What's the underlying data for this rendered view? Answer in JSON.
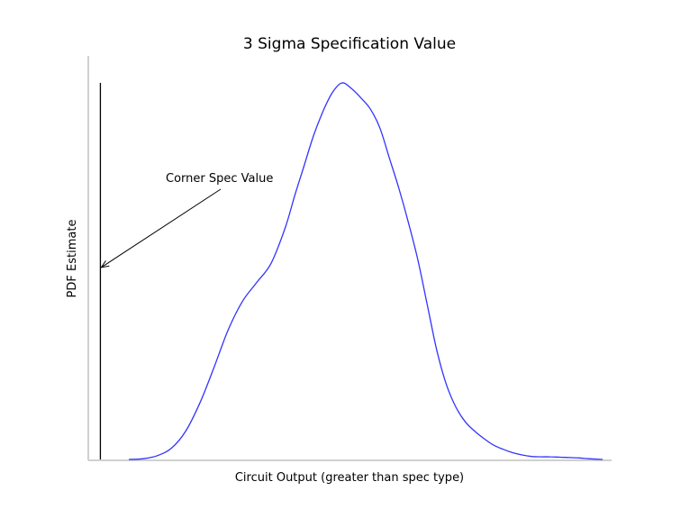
{
  "chart_data": {
    "type": "line",
    "title": "3 Sigma Specification Value",
    "xlabel": "Circuit Output (greater than spec type)",
    "ylabel": "PDF Estimate",
    "xlim": [
      0,
      1
    ],
    "ylim": [
      0,
      1
    ],
    "grid": false,
    "colors": {
      "curve": "#3333ff",
      "spec_line": "#000000",
      "axes": "#d0d0d0"
    },
    "series": [
      {
        "x": [
          0.0,
          0.03,
          0.06,
          0.09,
          0.12,
          0.15,
          0.18,
          0.21,
          0.24,
          0.27,
          0.3,
          0.33,
          0.35,
          0.37,
          0.39,
          0.41,
          0.43,
          0.45,
          0.47,
          0.49,
          0.51,
          0.53,
          0.55,
          0.57,
          0.59,
          0.61,
          0.63,
          0.65,
          0.67,
          0.69,
          0.71,
          0.73,
          0.75,
          0.77,
          0.79,
          0.81,
          0.83,
          0.85,
          0.87,
          0.89,
          0.91,
          0.93,
          0.95,
          0.97,
          1.0
        ],
        "y": [
          0.0,
          0.002,
          0.01,
          0.03,
          0.075,
          0.15,
          0.245,
          0.345,
          0.42,
          0.47,
          0.52,
          0.615,
          0.7,
          0.78,
          0.86,
          0.925,
          0.975,
          1.0,
          0.985,
          0.96,
          0.93,
          0.88,
          0.8,
          0.72,
          0.63,
          0.53,
          0.41,
          0.29,
          0.2,
          0.14,
          0.1,
          0.075,
          0.055,
          0.038,
          0.027,
          0.018,
          0.012,
          0.008,
          0.007,
          0.007,
          0.006,
          0.005,
          0.004,
          0.002,
          0.0
        ]
      }
    ],
    "spec_line": {
      "x": -0.06,
      "label": "Corner Spec Value",
      "arrow_y": 0.51
    }
  }
}
